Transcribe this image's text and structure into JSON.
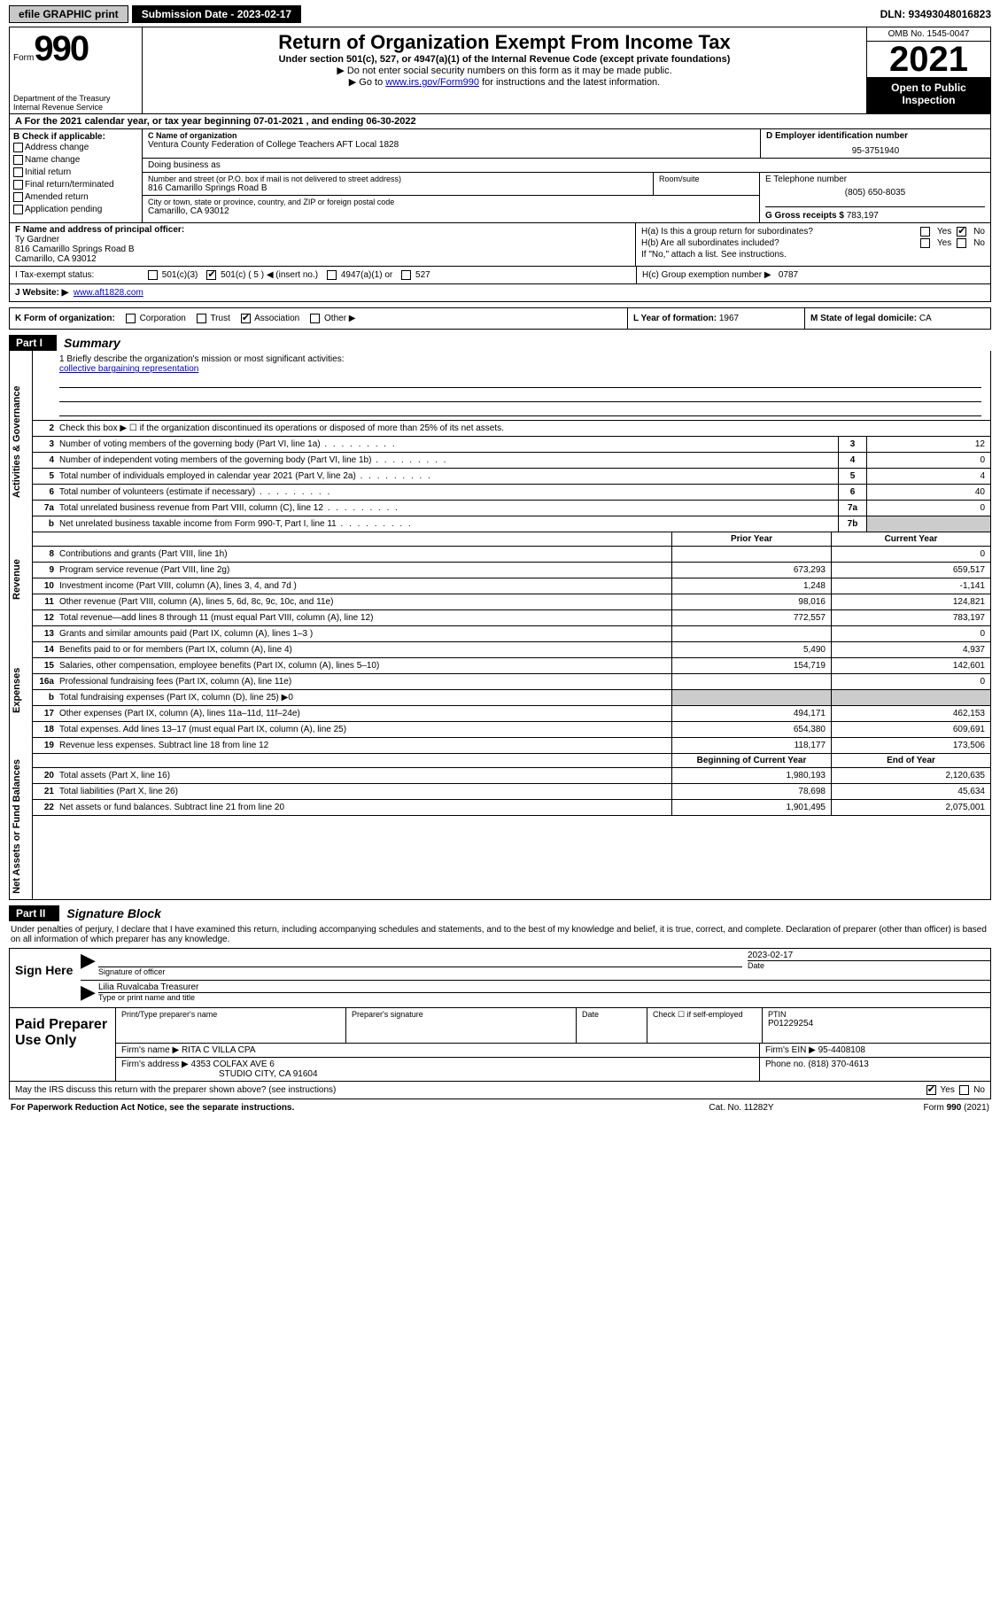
{
  "topbar": {
    "efile": "efile GRAPHIC print",
    "submission_label": "Submission Date - 2023-02-17",
    "dln": "DLN: 93493048016823"
  },
  "header": {
    "form_prefix": "Form",
    "form_number": "990",
    "dept": "Department of the Treasury",
    "irs": "Internal Revenue Service",
    "title": "Return of Organization Exempt From Income Tax",
    "sub1": "Under section 501(c), 527, or 4947(a)(1) of the Internal Revenue Code (except private foundations)",
    "sub2": "▶ Do not enter social security numbers on this form as it may be made public.",
    "sub3_pre": "▶ Go to ",
    "sub3_link": "www.irs.gov/Form990",
    "sub3_post": " for instructions and the latest information.",
    "omb": "OMB No. 1545-0047",
    "year": "2021",
    "open_pub": "Open to Public Inspection"
  },
  "row_a": "A For the 2021 calendar year, or tax year beginning 07-01-2021   , and ending 06-30-2022",
  "box_b": {
    "label": "B Check if applicable:",
    "opts": [
      "Address change",
      "Name change",
      "Initial return",
      "Final return/terminated",
      "Amended return",
      "Application pending"
    ]
  },
  "box_c": {
    "name_label": "C Name of organization",
    "name": "Ventura County Federation of College Teachers AFT Local 1828",
    "dba_label": "Doing business as",
    "dba": "",
    "street_label": "Number and street (or P.O. box if mail is not delivered to street address)",
    "street": "816 Camarillo Springs Road B",
    "room_label": "Room/suite",
    "city_label": "City or town, state or province, country, and ZIP or foreign postal code",
    "city": "Camarillo, CA  93012"
  },
  "box_d": {
    "label": "D Employer identification number",
    "value": "95-3751940"
  },
  "box_e": {
    "label": "E Telephone number",
    "value": "(805) 650-8035"
  },
  "box_g": {
    "label": "G Gross receipts $",
    "value": "783,197"
  },
  "box_f": {
    "label": "F Name and address of principal officer:",
    "name": "Ty Gardner",
    "addr1": "816 Camarillo Springs Road B",
    "addr2": "Camarillo, CA  93012"
  },
  "box_h": {
    "ha": "H(a)  Is this a group return for subordinates?",
    "ha_yes": "Yes",
    "ha_no": "No",
    "hb": "H(b)  Are all subordinates included?",
    "hb_note": "If \"No,\" attach a list. See instructions.",
    "hc": "H(c)  Group exemption number ▶",
    "hc_val": "0787"
  },
  "row_i": {
    "label": "I   Tax-exempt status:",
    "o1": "501(c)(3)",
    "o2": "501(c) ( 5 ) ◀ (insert no.)",
    "o3": "4947(a)(1) or",
    "o4": "527"
  },
  "row_j": {
    "label": "J   Website: ▶",
    "url": "www.aft1828.com"
  },
  "row_k": {
    "label": "K Form of organization:",
    "o1": "Corporation",
    "o2": "Trust",
    "o3": "Association",
    "o4": "Other ▶"
  },
  "row_l": {
    "label": "L Year of formation:",
    "value": "1967"
  },
  "row_m": {
    "label": "M State of legal domicile:",
    "value": "CA"
  },
  "part1": {
    "tag": "Part I",
    "title": "Summary"
  },
  "vert": {
    "gov": "Activities & Governance",
    "rev": "Revenue",
    "exp": "Expenses",
    "net": "Net Assets or Fund Balances"
  },
  "mission": {
    "q": "1   Briefly describe the organization's mission or most significant activities:",
    "text": "collective bargaining representation"
  },
  "gov_rows": [
    {
      "n": "2",
      "t": "Check this box ▶ ☐  if the organization discontinued its operations or disposed of more than 25% of its net assets.",
      "nbox": "",
      "v": ""
    },
    {
      "n": "3",
      "t": "Number of voting members of the governing body (Part VI, line 1a)",
      "nbox": "3",
      "v": "12"
    },
    {
      "n": "4",
      "t": "Number of independent voting members of the governing body (Part VI, line 1b)",
      "nbox": "4",
      "v": "0"
    },
    {
      "n": "5",
      "t": "Total number of individuals employed in calendar year 2021 (Part V, line 2a)",
      "nbox": "5",
      "v": "4"
    },
    {
      "n": "6",
      "t": "Total number of volunteers (estimate if necessary)",
      "nbox": "6",
      "v": "40"
    },
    {
      "n": "7a",
      "t": "Total unrelated business revenue from Part VIII, column (C), line 12",
      "nbox": "7a",
      "v": "0"
    },
    {
      "n": "b",
      "t": "Net unrelated business taxable income from Form 990-T, Part I, line 11",
      "nbox": "7b",
      "v": ""
    }
  ],
  "col_hdr": {
    "prior": "Prior Year",
    "current": "Current Year"
  },
  "rev_rows": [
    {
      "n": "8",
      "t": "Contributions and grants (Part VIII, line 1h)",
      "c1": "",
      "c2": "0"
    },
    {
      "n": "9",
      "t": "Program service revenue (Part VIII, line 2g)",
      "c1": "673,293",
      "c2": "659,517"
    },
    {
      "n": "10",
      "t": "Investment income (Part VIII, column (A), lines 3, 4, and 7d )",
      "c1": "1,248",
      "c2": "-1,141"
    },
    {
      "n": "11",
      "t": "Other revenue (Part VIII, column (A), lines 5, 6d, 8c, 9c, 10c, and 11e)",
      "c1": "98,016",
      "c2": "124,821"
    },
    {
      "n": "12",
      "t": "Total revenue—add lines 8 through 11 (must equal Part VIII, column (A), line 12)",
      "c1": "772,557",
      "c2": "783,197"
    }
  ],
  "exp_rows": [
    {
      "n": "13",
      "t": "Grants and similar amounts paid (Part IX, column (A), lines 1–3 )",
      "c1": "",
      "c2": "0"
    },
    {
      "n": "14",
      "t": "Benefits paid to or for members (Part IX, column (A), line 4)",
      "c1": "5,490",
      "c2": "4,937"
    },
    {
      "n": "15",
      "t": "Salaries, other compensation, employee benefits (Part IX, column (A), lines 5–10)",
      "c1": "154,719",
      "c2": "142,601"
    },
    {
      "n": "16a",
      "t": "Professional fundraising fees (Part IX, column (A), line 11e)",
      "c1": "",
      "c2": "0"
    },
    {
      "n": "b",
      "t": "Total fundraising expenses (Part IX, column (D), line 25) ▶0",
      "c1": "shade",
      "c2": "shade"
    },
    {
      "n": "17",
      "t": "Other expenses (Part IX, column (A), lines 11a–11d, 11f–24e)",
      "c1": "494,171",
      "c2": "462,153"
    },
    {
      "n": "18",
      "t": "Total expenses. Add lines 13–17 (must equal Part IX, column (A), line 25)",
      "c1": "654,380",
      "c2": "609,691"
    },
    {
      "n": "19",
      "t": "Revenue less expenses. Subtract line 18 from line 12",
      "c1": "118,177",
      "c2": "173,506"
    }
  ],
  "net_hdr": {
    "c1": "Beginning of Current Year",
    "c2": "End of Year"
  },
  "net_rows": [
    {
      "n": "20",
      "t": "Total assets (Part X, line 16)",
      "c1": "1,980,193",
      "c2": "2,120,635"
    },
    {
      "n": "21",
      "t": "Total liabilities (Part X, line 26)",
      "c1": "78,698",
      "c2": "45,634"
    },
    {
      "n": "22",
      "t": "Net assets or fund balances. Subtract line 21 from line 20",
      "c1": "1,901,495",
      "c2": "2,075,001"
    }
  ],
  "part2": {
    "tag": "Part II",
    "title": "Signature Block"
  },
  "sig_text": "Under penalties of perjury, I declare that I have examined this return, including accompanying schedules and statements, and to the best of my knowledge and belief, it is true, correct, and complete. Declaration of preparer (other than officer) is based on all information of which preparer has any knowledge.",
  "sign": {
    "here": "Sign Here",
    "sig_label": "Signature of officer",
    "date_label": "Date",
    "date": "2023-02-17",
    "name": "Lilia Ruvalcaba  Treasurer",
    "type_label": "Type or print name and title"
  },
  "prep": {
    "label": "Paid Preparer Use Only",
    "r1": {
      "c1_label": "Print/Type preparer's name",
      "c2_label": "Preparer's signature",
      "c3_label": "Date",
      "c4_label": "Check ☐ if self-employed",
      "c5_label": "PTIN",
      "c5_val": "P01229254"
    },
    "r2": {
      "firm_label": "Firm's name    ▶",
      "firm": "RITA C VILLA CPA",
      "ein_label": "Firm's EIN ▶",
      "ein": "95-4408108"
    },
    "r3": {
      "addr_label": "Firm's address ▶",
      "addr1": "4353 COLFAX AVE 6",
      "addr2": "STUDIO CITY, CA  91604",
      "phone_label": "Phone no.",
      "phone": "(818) 370-4613"
    }
  },
  "discuss": {
    "q": "May the IRS discuss this return with the preparer shown above? (see instructions)",
    "yes": "Yes",
    "no": "No"
  },
  "footer": {
    "l": "For Paperwork Reduction Act Notice, see the separate instructions.",
    "m": "Cat. No. 11282Y",
    "r": "Form 990 (2021)"
  }
}
